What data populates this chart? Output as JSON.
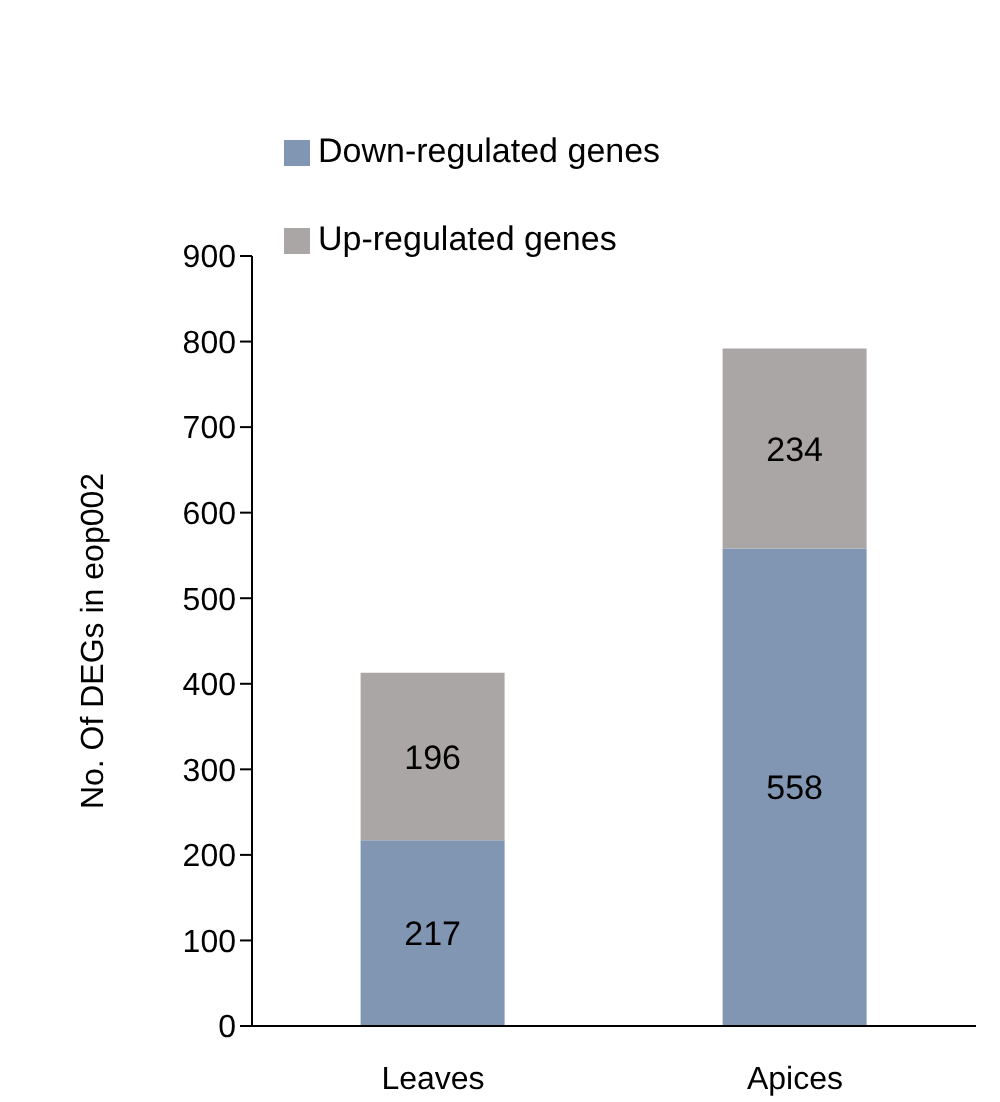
{
  "chart_data": {
    "type": "bar",
    "stacked": true,
    "categories": [
      "Leaves",
      "Apices"
    ],
    "series": [
      {
        "name": "Down-regulated genes",
        "color": "#8096b3",
        "values": [
          217,
          558
        ]
      },
      {
        "name": "Up-regulated genes",
        "color": "#aaa6a6",
        "values": [
          196,
          234
        ]
      }
    ],
    "ylabel": "No. Of DEGs in eop002",
    "ylim": [
      0,
      900
    ],
    "yticks": [
      0,
      100,
      200,
      300,
      400,
      500,
      600,
      700,
      800,
      900
    ],
    "data_labels": true,
    "legend": "top left",
    "grid": false
  }
}
